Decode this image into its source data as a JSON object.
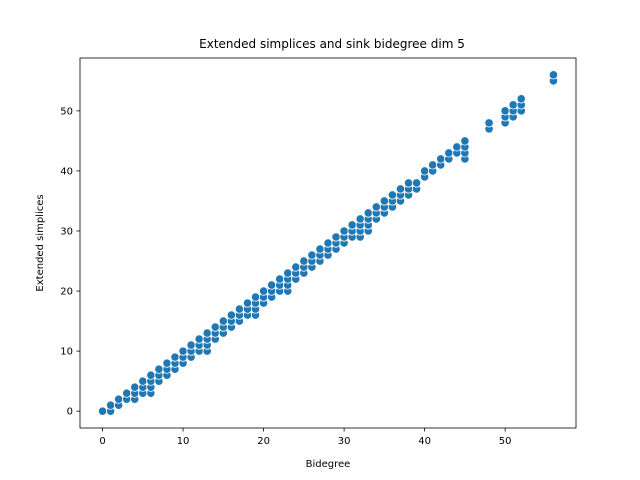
{
  "chart_data": {
    "type": "scatter",
    "title": "Extended simplices and sink bidegree dim 5",
    "xlabel": "Bidegree",
    "ylabel": "Extended simplices",
    "xlim": [
      -2.8,
      58.8
    ],
    "ylim": [
      -2.8,
      58.8
    ],
    "xticks": [
      0,
      10,
      20,
      30,
      40,
      50
    ],
    "yticks": [
      0,
      10,
      20,
      30,
      40,
      50
    ],
    "marker_color": "#1f77b4",
    "marker_edge": "#ffffff",
    "grid": false,
    "points": [
      [
        0,
        0
      ],
      [
        1,
        0
      ],
      [
        1,
        1
      ],
      [
        2,
        1
      ],
      [
        2,
        2
      ],
      [
        3,
        2
      ],
      [
        3,
        3
      ],
      [
        4,
        2
      ],
      [
        4,
        3
      ],
      [
        4,
        4
      ],
      [
        5,
        3
      ],
      [
        5,
        4
      ],
      [
        5,
        5
      ],
      [
        6,
        3
      ],
      [
        6,
        4
      ],
      [
        6,
        5
      ],
      [
        6,
        6
      ],
      [
        7,
        5
      ],
      [
        7,
        6
      ],
      [
        7,
        7
      ],
      [
        8,
        6
      ],
      [
        8,
        7
      ],
      [
        8,
        8
      ],
      [
        9,
        7
      ],
      [
        9,
        8
      ],
      [
        9,
        9
      ],
      [
        10,
        8
      ],
      [
        10,
        9
      ],
      [
        10,
        10
      ],
      [
        11,
        9
      ],
      [
        11,
        10
      ],
      [
        11,
        11
      ],
      [
        12,
        10
      ],
      [
        12,
        11
      ],
      [
        12,
        12
      ],
      [
        13,
        10
      ],
      [
        13,
        11
      ],
      [
        13,
        12
      ],
      [
        13,
        13
      ],
      [
        14,
        12
      ],
      [
        14,
        13
      ],
      [
        14,
        14
      ],
      [
        15,
        13
      ],
      [
        15,
        14
      ],
      [
        15,
        15
      ],
      [
        16,
        14
      ],
      [
        16,
        15
      ],
      [
        16,
        16
      ],
      [
        17,
        15
      ],
      [
        17,
        16
      ],
      [
        17,
        17
      ],
      [
        18,
        16
      ],
      [
        18,
        17
      ],
      [
        18,
        18
      ],
      [
        19,
        16
      ],
      [
        19,
        17
      ],
      [
        19,
        18
      ],
      [
        19,
        19
      ],
      [
        20,
        18
      ],
      [
        20,
        19
      ],
      [
        20,
        20
      ],
      [
        21,
        19
      ],
      [
        21,
        20
      ],
      [
        21,
        21
      ],
      [
        22,
        20
      ],
      [
        22,
        21
      ],
      [
        22,
        22
      ],
      [
        23,
        20
      ],
      [
        23,
        21
      ],
      [
        23,
        22
      ],
      [
        23,
        23
      ],
      [
        24,
        22
      ],
      [
        24,
        23
      ],
      [
        24,
        24
      ],
      [
        25,
        23
      ],
      [
        25,
        24
      ],
      [
        25,
        25
      ],
      [
        26,
        24
      ],
      [
        26,
        25
      ],
      [
        26,
        26
      ],
      [
        27,
        25
      ],
      [
        27,
        26
      ],
      [
        27,
        27
      ],
      [
        28,
        26
      ],
      [
        28,
        27
      ],
      [
        28,
        28
      ],
      [
        29,
        27
      ],
      [
        29,
        28
      ],
      [
        29,
        29
      ],
      [
        30,
        28
      ],
      [
        30,
        29
      ],
      [
        30,
        30
      ],
      [
        31,
        29
      ],
      [
        31,
        30
      ],
      [
        31,
        31
      ],
      [
        32,
        29
      ],
      [
        32,
        30
      ],
      [
        32,
        31
      ],
      [
        32,
        32
      ],
      [
        33,
        30
      ],
      [
        33,
        31
      ],
      [
        33,
        32
      ],
      [
        33,
        33
      ],
      [
        34,
        32
      ],
      [
        34,
        33
      ],
      [
        34,
        34
      ],
      [
        35,
        33
      ],
      [
        35,
        34
      ],
      [
        35,
        35
      ],
      [
        36,
        34
      ],
      [
        36,
        35
      ],
      [
        36,
        36
      ],
      [
        37,
        35
      ],
      [
        37,
        36
      ],
      [
        37,
        37
      ],
      [
        38,
        36
      ],
      [
        38,
        37
      ],
      [
        38,
        38
      ],
      [
        39,
        37
      ],
      [
        39,
        38
      ],
      [
        40,
        39
      ],
      [
        40,
        40
      ],
      [
        41,
        40
      ],
      [
        41,
        41
      ],
      [
        42,
        41
      ],
      [
        42,
        42
      ],
      [
        43,
        42
      ],
      [
        43,
        43
      ],
      [
        44,
        43
      ],
      [
        44,
        44
      ],
      [
        45,
        42
      ],
      [
        45,
        43
      ],
      [
        45,
        44
      ],
      [
        45,
        45
      ],
      [
        48,
        47
      ],
      [
        48,
        48
      ],
      [
        50,
        48
      ],
      [
        50,
        49
      ],
      [
        50,
        50
      ],
      [
        51,
        49
      ],
      [
        51,
        50
      ],
      [
        51,
        51
      ],
      [
        52,
        50
      ],
      [
        52,
        51
      ],
      [
        52,
        52
      ],
      [
        56,
        55
      ],
      [
        56,
        56
      ]
    ]
  }
}
